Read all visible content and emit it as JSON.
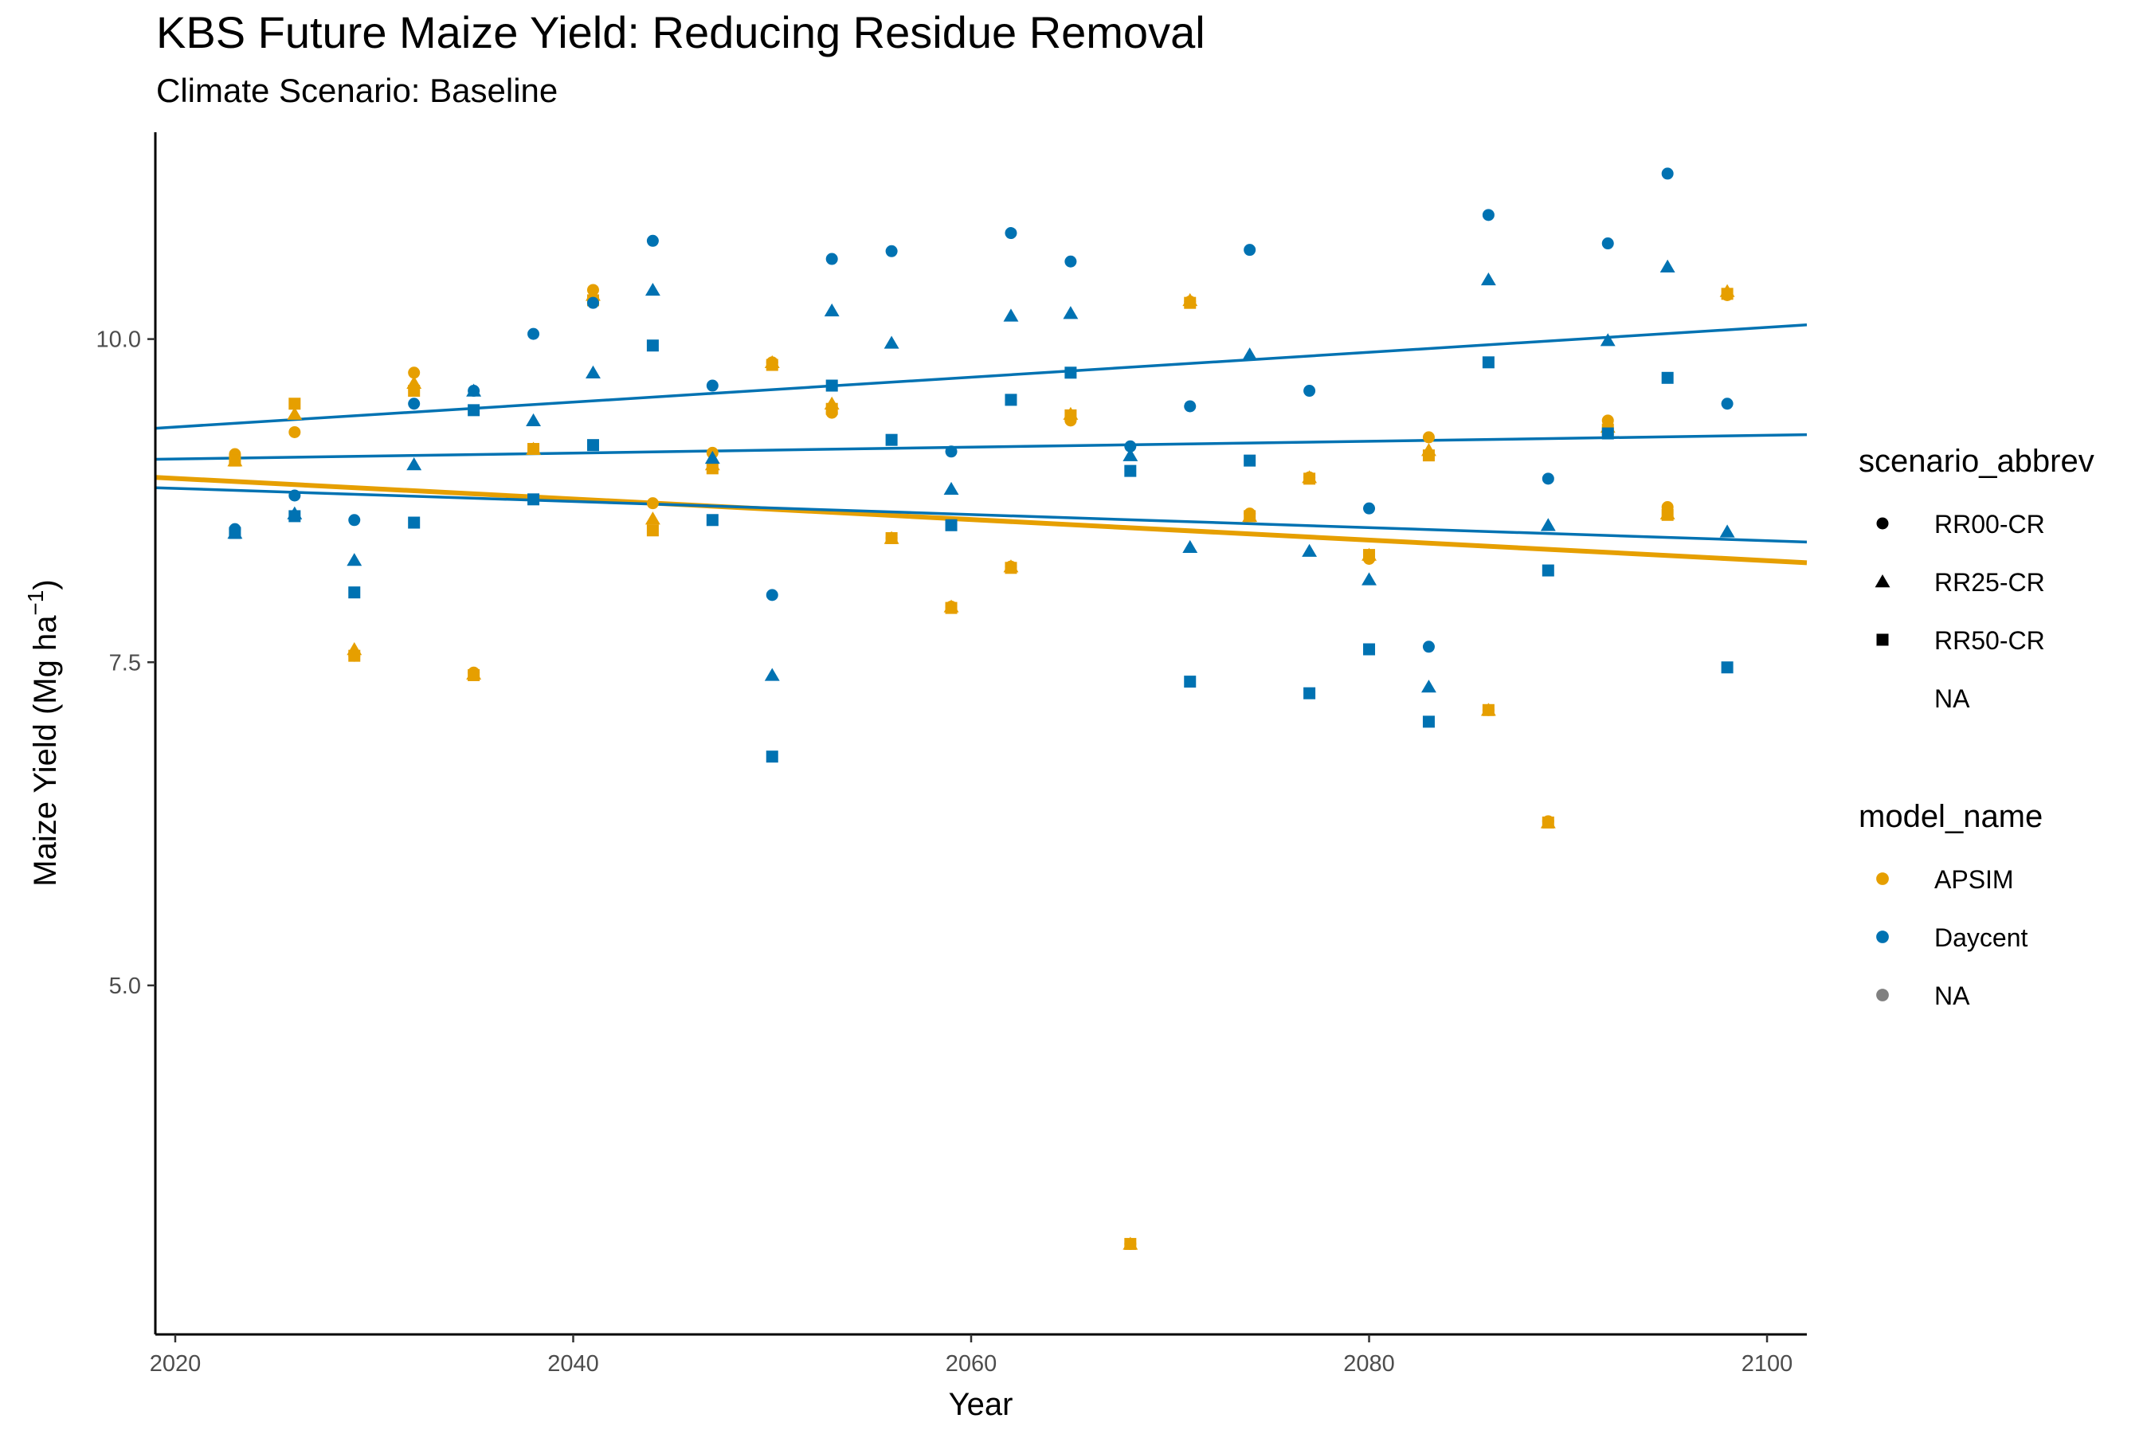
{
  "chart_data": {
    "type": "scatter",
    "title": "KBS Future Maize Yield: Reducing Residue Removal",
    "subtitle": "Climate Scenario: Baseline",
    "xlabel": "Year",
    "ylabel": "Maize Yield (Mg ha",
    "ylabel_superscript": "−1",
    "ylabel_suffix": ")",
    "xlim": [
      2019,
      2102
    ],
    "ylim": [
      2.3,
      11.6
    ],
    "x_ticks": [
      2020,
      2040,
      2060,
      2080,
      2100
    ],
    "y_ticks": [
      5.0,
      7.5,
      10.0
    ],
    "y_tick_labels": [
      "5.0",
      "7.5",
      "10.0"
    ],
    "grid": false,
    "legend_position": "right",
    "colors": {
      "APSIM": "#E69F00",
      "Daycent": "#0072B2",
      "NA": "#808080"
    },
    "legends": [
      {
        "title": "scenario_abbrev",
        "entries": [
          {
            "label": "RR00-CR",
            "shape": "circle"
          },
          {
            "label": "RR25-CR",
            "shape": "triangle"
          },
          {
            "label": "RR50-CR",
            "shape": "square"
          },
          {
            "label": "NA",
            "shape": "none"
          }
        ]
      },
      {
        "title": "model_name",
        "entries": [
          {
            "label": "APSIM",
            "color": "#E69F00"
          },
          {
            "label": "Daycent",
            "color": "#0072B2"
          },
          {
            "label": "NA",
            "color": "#808080"
          }
        ]
      }
    ],
    "trend_lines": [
      {
        "model": "APSIM",
        "x": [
          2019,
          2102
        ],
        "y": [
          8.93,
          8.27
        ]
      },
      {
        "model": "Daycent",
        "scenario": "RR00-CR",
        "x": [
          2019,
          2102
        ],
        "y": [
          9.31,
          10.11
        ]
      },
      {
        "model": "Daycent",
        "scenario": "RR25-CR",
        "x": [
          2019,
          2102
        ],
        "y": [
          9.07,
          9.26
        ]
      },
      {
        "model": "Daycent",
        "scenario": "RR50-CR",
        "x": [
          2019,
          2102
        ],
        "y": [
          8.85,
          8.43
        ]
      }
    ],
    "series": [
      {
        "model": "APSIM",
        "scenario": "RR00-CR",
        "x": [
          2023,
          2026,
          2029,
          2032,
          2035,
          2038,
          2041,
          2044,
          2047,
          2050,
          2053,
          2056,
          2059,
          2062,
          2065,
          2068,
          2071,
          2074,
          2077,
          2080,
          2083,
          2086,
          2089,
          2092,
          2095,
          2098
        ],
        "y": [
          9.11,
          9.28,
          7.55,
          9.74,
          7.42,
          9.15,
          10.38,
          8.73,
          9.12,
          9.82,
          9.43,
          8.46,
          7.93,
          8.24,
          9.37,
          3.0,
          10.29,
          8.65,
          8.93,
          8.3,
          9.24,
          7.13,
          6.27,
          9.37,
          8.7,
          10.34
        ]
      },
      {
        "model": "APSIM",
        "scenario": "RR25-CR",
        "x": [
          2023,
          2026,
          2029,
          2032,
          2035,
          2038,
          2041,
          2044,
          2047,
          2050,
          2053,
          2056,
          2059,
          2062,
          2065,
          2068,
          2071,
          2074,
          2077,
          2080,
          2083,
          2086,
          2089,
          2092,
          2095,
          2098
        ],
        "y": [
          9.06,
          9.42,
          7.6,
          9.66,
          7.41,
          9.15,
          10.34,
          8.61,
          9.03,
          9.82,
          9.5,
          8.46,
          7.93,
          8.24,
          9.42,
          3.0,
          10.3,
          8.63,
          8.93,
          8.33,
          9.14,
          7.13,
          6.26,
          9.32,
          8.65,
          10.37
        ]
      },
      {
        "model": "APSIM",
        "scenario": "RR50-CR",
        "x": [
          2023,
          2026,
          2029,
          2032,
          2035,
          2038,
          2041,
          2044,
          2047,
          2050,
          2053,
          2056,
          2059,
          2062,
          2065,
          2068,
          2071,
          2074,
          2077,
          2080,
          2083,
          2086,
          2089,
          2092,
          2095,
          2098
        ],
        "y": [
          9.06,
          9.5,
          7.55,
          9.6,
          7.4,
          9.15,
          10.3,
          8.52,
          9.0,
          9.8,
          9.46,
          8.46,
          7.92,
          8.23,
          9.41,
          3.0,
          10.28,
          8.63,
          8.92,
          8.33,
          9.1,
          7.13,
          6.26,
          9.3,
          8.64,
          10.35
        ]
      },
      {
        "model": "Daycent",
        "scenario": "RR00-CR",
        "x": [
          2023,
          2026,
          2029,
          2032,
          2035,
          2038,
          2041,
          2044,
          2047,
          2050,
          2053,
          2056,
          2059,
          2062,
          2065,
          2068,
          2071,
          2074,
          2077,
          2080,
          2083,
          2086,
          2089,
          2092,
          2095,
          2098
        ],
        "y": [
          8.53,
          8.79,
          8.6,
          9.5,
          9.6,
          10.04,
          10.28,
          10.76,
          9.64,
          8.02,
          10.62,
          10.68,
          9.13,
          10.82,
          10.6,
          9.17,
          9.48,
          10.69,
          9.6,
          8.69,
          7.62,
          10.96,
          8.92,
          10.74,
          11.28,
          9.5
        ]
      },
      {
        "model": "Daycent",
        "scenario": "RR25-CR",
        "x": [
          2023,
          2026,
          2029,
          2032,
          2035,
          2038,
          2041,
          2044,
          2047,
          2050,
          2053,
          2056,
          2059,
          2062,
          2065,
          2068,
          2071,
          2074,
          2077,
          2080,
          2083,
          2086,
          2089,
          2092,
          2095,
          2098
        ],
        "y": [
          8.5,
          8.65,
          8.29,
          9.03,
          9.6,
          9.37,
          9.74,
          10.38,
          9.08,
          7.4,
          10.22,
          9.97,
          8.84,
          10.18,
          10.2,
          9.1,
          8.39,
          9.88,
          8.36,
          8.14,
          7.31,
          10.46,
          8.56,
          9.99,
          10.56,
          8.51
        ]
      },
      {
        "model": "Daycent",
        "scenario": "RR50-CR",
        "x": [
          2023,
          2026,
          2029,
          2032,
          2035,
          2038,
          2041,
          2044,
          2047,
          2050,
          2053,
          2056,
          2059,
          2062,
          2065,
          2068,
          2071,
          2074,
          2077,
          2080,
          2083,
          2086,
          2089,
          2092,
          2095,
          2098
        ],
        "y": [
          8.5,
          8.63,
          8.04,
          8.58,
          9.45,
          8.76,
          9.18,
          9.95,
          8.6,
          6.77,
          9.64,
          9.22,
          8.56,
          9.53,
          9.74,
          8.98,
          7.35,
          9.06,
          7.26,
          7.6,
          7.04,
          9.82,
          8.21,
          9.27,
          9.7,
          7.46
        ]
      }
    ]
  }
}
